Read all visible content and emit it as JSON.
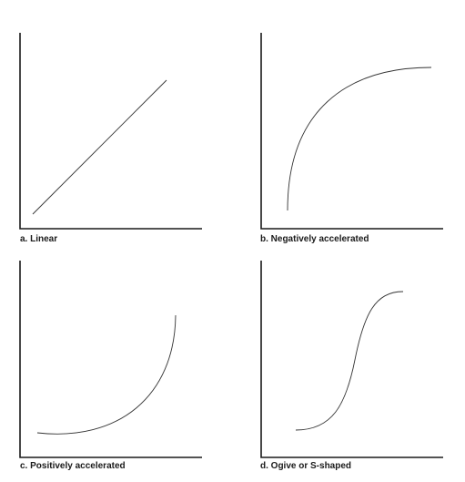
{
  "panels": [
    {
      "id": "a",
      "caption": "a. Linear",
      "curve": "linear"
    },
    {
      "id": "b",
      "caption": "b. Negatively accelerated",
      "curve": "negatively-accelerated"
    },
    {
      "id": "c",
      "caption": "c. Positively accelerated",
      "curve": "positively-accelerated"
    },
    {
      "id": "d",
      "caption": "d. Ogive or S-shaped",
      "curve": "ogive"
    }
  ],
  "colors": {
    "axis": "#1a1a1a",
    "curve": "#333333",
    "caption": "#1a1a1a"
  }
}
